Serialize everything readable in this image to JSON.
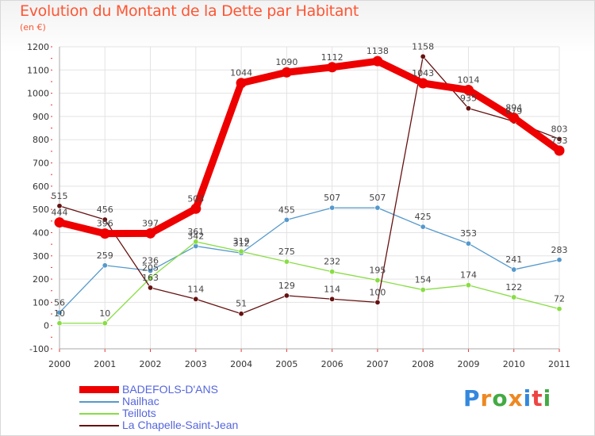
{
  "header": {
    "title": "Evolution du Montant de la Dette par Habitant",
    "subtitle": "(en €)"
  },
  "brand": {
    "text": "Proxiti",
    "colors": [
      "#3388dd",
      "#ee8822",
      "#44aa44",
      "#ee8822",
      "#3388dd",
      "#ee4444",
      "#44aa44"
    ]
  },
  "chart_data": {
    "type": "line",
    "title": "Evolution du Montant de la Dette par Habitant",
    "ylabel": "(en €)",
    "xlabel": "",
    "x": [
      "2000",
      "2001",
      "2002",
      "2003",
      "2004",
      "2005",
      "2006",
      "2007",
      "2008",
      "2009",
      "2010",
      "2011"
    ],
    "ylim": [
      -100,
      1200
    ],
    "yticks": [
      -100,
      0,
      100,
      200,
      300,
      400,
      500,
      600,
      700,
      800,
      900,
      1000,
      1100,
      1200
    ],
    "grid": true,
    "legend_position": "bottom-left",
    "series": [
      {
        "name": "BADEFOLS-D'ANS",
        "color": "#ee0000",
        "values": [
          444,
          396,
          397,
          503,
          1044,
          1090,
          1112,
          1138,
          1043,
          1014,
          894,
          753
        ]
      },
      {
        "name": "Nailhac",
        "color": "#5599cc",
        "values": [
          56,
          259,
          236,
          342,
          312,
          455,
          507,
          507,
          425,
          353,
          241,
          283
        ]
      },
      {
        "name": "Teillots",
        "color": "#88dd44",
        "values": [
          10,
          10,
          205,
          361,
          319,
          275,
          232,
          195,
          154,
          174,
          122,
          72
        ]
      },
      {
        "name": "La Chapelle-Saint-Jean",
        "color": "#661111",
        "values": [
          515,
          456,
          163,
          114,
          51,
          129,
          114,
          100,
          1158,
          935,
          879,
          803
        ]
      }
    ]
  }
}
